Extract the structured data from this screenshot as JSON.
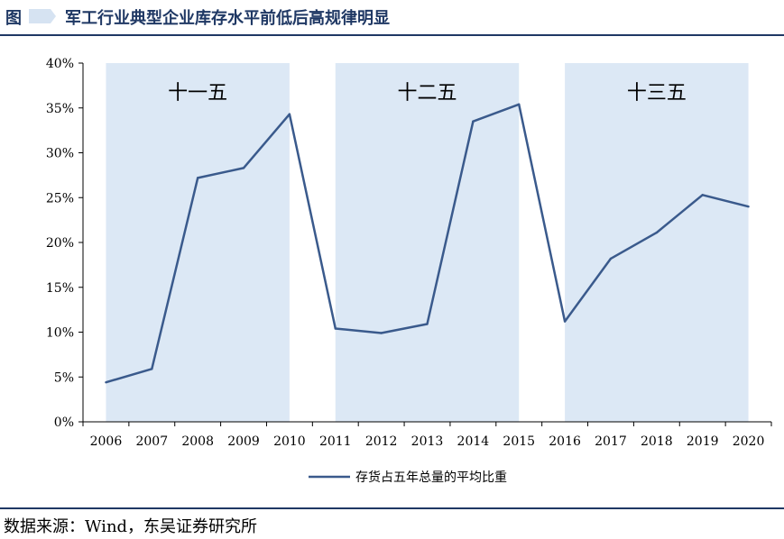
{
  "header": {
    "label": "图",
    "title": "军工行业典型企业库存水平前低后高规律明显"
  },
  "source": "数据来源：Wind，东吴证券研究所",
  "colors": {
    "line": "#3a5a8c",
    "band": "#dce8f5",
    "axis": "#000000",
    "rule": "#1f3864"
  },
  "chart_data": {
    "type": "line",
    "title": "",
    "xlabel": "",
    "ylabel": "",
    "categories": [
      "2006",
      "2007",
      "2008",
      "2009",
      "2010",
      "2011",
      "2012",
      "2013",
      "2014",
      "2015",
      "2016",
      "2017",
      "2018",
      "2019",
      "2020"
    ],
    "series": [
      {
        "name": "存货占五年总量的平均比重",
        "values": [
          4.4,
          5.9,
          27.2,
          28.3,
          34.3,
          10.4,
          9.9,
          10.9,
          33.5,
          35.4,
          11.2,
          18.2,
          21.1,
          25.3,
          24.0
        ]
      }
    ],
    "ylim": [
      0,
      40
    ],
    "yticks": [
      "0%",
      "5%",
      "10%",
      "15%",
      "20%",
      "25%",
      "30%",
      "35%",
      "40%"
    ],
    "ytick_values": [
      0,
      5,
      10,
      15,
      20,
      25,
      30,
      35,
      40
    ],
    "periods": [
      {
        "label": "十一五",
        "start": "2006",
        "end": "2010"
      },
      {
        "label": "十二五",
        "start": "2011",
        "end": "2015"
      },
      {
        "label": "十三五",
        "start": "2016",
        "end": "2020"
      }
    ],
    "legend_position": "bottom-center",
    "grid": false
  }
}
